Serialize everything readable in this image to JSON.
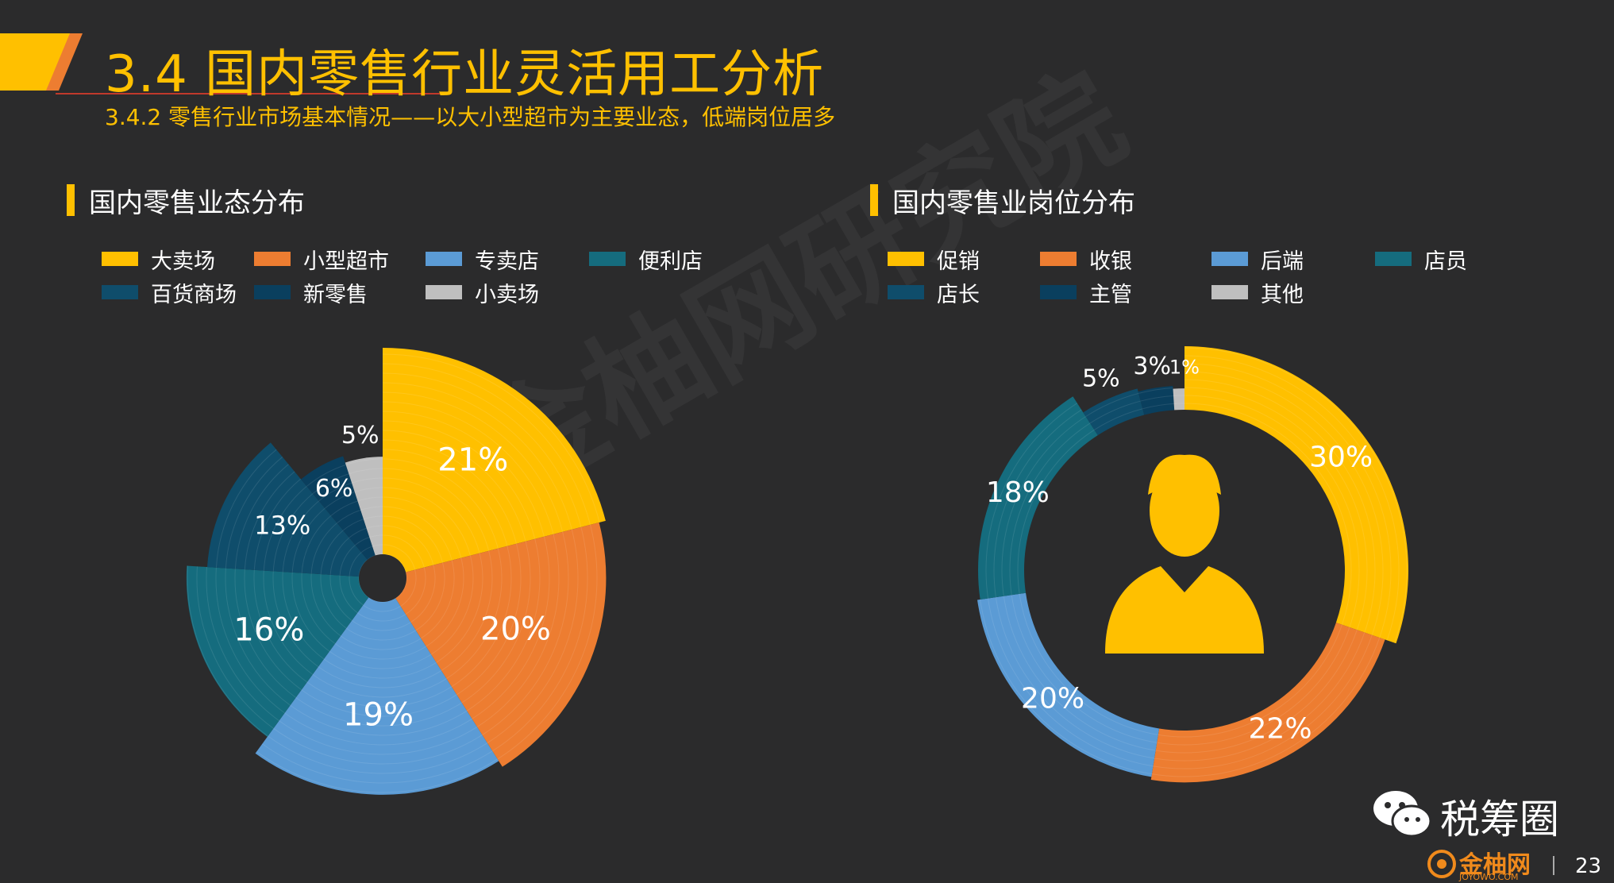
{
  "page": {
    "title": "3.4 国内零售行业灵活用工分析",
    "subtitle": "3.4.2 零售行业市场基本情况——以大小型超市为主要业态，低端岗位居多",
    "watermark": "金柚网研究院",
    "brand": "税筹圈",
    "logo_text": "金柚网",
    "logo_sub": "JOYOWO.COM",
    "page_number": "23",
    "accent_color": "#ffc000"
  },
  "chart_data": [
    {
      "type": "pie",
      "subtype": "variable-radius-pie",
      "title": "国内零售业态分布",
      "legend_position": "top",
      "categories": [
        "大卖场",
        "小型超市",
        "专卖店",
        "便利店",
        "百货商场",
        "新零售",
        "小卖场"
      ],
      "values": [
        21,
        20,
        19,
        16,
        13,
        6,
        5
      ],
      "labels": [
        "21%",
        "20%",
        "19%",
        "16%",
        "13%",
        "6%",
        "5%"
      ],
      "colors": [
        "#ffc000",
        "#ed7d31",
        "#5b9bd5",
        "#156c7e",
        "#0f4d6b",
        "#0a3f5e",
        "#bfbfbf"
      ]
    },
    {
      "type": "pie",
      "subtype": "donut",
      "title": "国内零售业岗位分布",
      "legend_position": "top",
      "center_icon": "person-icon",
      "categories": [
        "促销",
        "收银",
        "后端",
        "店员",
        "店长",
        "主管",
        "其他"
      ],
      "values": [
        30,
        22,
        20,
        18,
        5,
        3,
        1
      ],
      "labels": [
        "30%",
        "22%",
        "20%",
        "18%",
        "5%",
        "3%",
        "1%"
      ],
      "colors": [
        "#ffc000",
        "#ed7d31",
        "#5b9bd5",
        "#156c7e",
        "#0f4d6b",
        "#0a3f5e",
        "#bfbfbf"
      ]
    }
  ]
}
